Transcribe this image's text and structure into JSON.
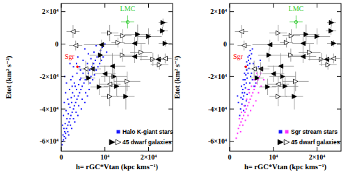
{
  "chart_data": [
    {
      "type": "scatter",
      "x_label": "h= rGC*Vtan (kpc kms⁻¹)",
      "y_label": "Etot (km² s⁻²)",
      "xlim": [
        0,
        25500
      ],
      "ylim": [
        -66000,
        25000
      ],
      "xticks": [
        0,
        {
          "value": 10000,
          "label": "10⁴"
        },
        {
          "value": 20000,
          "label": "2×10⁴"
        }
      ],
      "yticks": [
        {
          "value": -60000,
          "label": "-6×10⁴"
        },
        {
          "value": -40000,
          "label": "-4×10⁴"
        },
        {
          "value": -20000,
          "label": "-2×10⁴"
        },
        0,
        {
          "value": 20000,
          "label": "2×10⁴"
        }
      ],
      "legend": "lower right",
      "series": [
        {
          "name": "Halo K-giant stars",
          "color": "#1a1aff",
          "marker": "square",
          "x": [
            200,
            300,
            500,
            400,
            700,
            800,
            1000,
            1200,
            600,
            1500,
            900,
            1800,
            1300,
            2000,
            2200,
            1600,
            2500,
            2800,
            1100,
            2000,
            3000,
            3300,
            2400,
            3600,
            1500,
            3000,
            3900,
            4200,
            2600,
            4500,
            3500,
            1900,
            4800,
            4000,
            5200,
            3000,
            5500,
            4500,
            2200,
            5800,
            6200,
            5000,
            3600,
            6500,
            5600,
            7000,
            4200,
            6000,
            7400,
            7800,
            6800,
            5000,
            8200,
            8600,
            7500,
            9000,
            6200,
            9400,
            8000,
            10000,
            5400,
            1000,
            700,
            500,
            300,
            1200,
            800,
            2800,
            3800,
            2000,
            6400,
            5600,
            4800,
            4000,
            3400,
            2800,
            2100,
            1500,
            7200,
            6600,
            8000,
            8800,
            9600,
            7600,
            1700,
            2300,
            3200,
            2600,
            4300,
            3800,
            4600,
            5400,
            6000,
            3100,
            2400,
            1700,
            1000,
            10400,
            9200,
            4400,
            6800,
            8400,
            3500,
            2500
          ],
          "values": [
            -62000,
            -60000,
            -59000,
            -56000,
            -57000,
            -54000,
            -55000,
            -52000,
            -52000,
            -50000,
            -49000,
            -48000,
            -46000,
            -46000,
            -44000,
            -43000,
            -42000,
            -40000,
            -41000,
            -39000,
            -38000,
            -36000,
            -36000,
            -34000,
            -34000,
            -32000,
            -32000,
            -30000,
            -30000,
            -28000,
            -28000,
            -28000,
            -26000,
            -25000,
            -24000,
            -24000,
            -22000,
            -21000,
            -22000,
            -20000,
            -18000,
            -18000,
            -18000,
            -16000,
            -15000,
            -14000,
            -14000,
            -12000,
            -12000,
            -10000,
            -9000,
            -10000,
            -8000,
            -6000,
            -5000,
            -4000,
            -6000,
            -2000,
            -1000,
            0,
            -3000,
            -30000,
            -36000,
            -44000,
            -50000,
            -24000,
            -20000,
            -14000,
            -8000,
            -12000,
            -28000,
            -30000,
            -34000,
            -38000,
            -42000,
            -46000,
            -50000,
            -54000,
            -22000,
            -24000,
            -16000,
            -12000,
            -8000,
            -19000,
            -37000,
            -33000,
            -26000,
            -20000,
            -22000,
            -44000,
            -40000,
            -36000,
            -32000,
            -48000,
            -52000,
            -56000,
            -58000,
            -5000,
            -10000,
            -16000,
            -20000,
            -14000,
            -12000,
            -26000
          ]
        },
        {
          "name": "45 dwarf galaxies",
          "color": "#000000",
          "marker": "filled-triangle-right",
          "x": [
            23300,
            23200,
            23800,
            20000,
            17500,
            9000,
            12100,
            6300,
            12700,
            14800,
            8700
          ],
          "values": [
            13200,
            8100,
            400,
            4700,
            6000,
            -6800,
            -20000,
            -20900,
            -26000,
            -32300,
            -26400
          ],
          "x_error": [
            1000,
            1200,
            1500,
            3000,
            3000,
            2500,
            3000,
            1500,
            3000,
            2000,
            2000
          ],
          "y_error": [
            2500,
            2500,
            2000,
            5000,
            6000,
            4000,
            5000,
            4000,
            6000,
            8000,
            5000
          ]
        },
        {
          "color": "#000000",
          "marker": "open-triangle-right",
          "x": [
            14100,
            13000,
            11100,
            14000,
            18300,
            21000,
            22500,
            15100,
            11100
          ],
          "values": [
            5100,
            900,
            6800,
            -6800,
            -5100,
            -9400,
            -12800,
            -23000,
            -32300
          ],
          "x_error": [
            2000,
            1500,
            2000,
            2500,
            2500,
            3000,
            2000,
            3000,
            2000
          ],
          "y_error": [
            4000,
            3000,
            5000,
            4000,
            5000,
            4000,
            3000,
            6000,
            6000
          ]
        },
        {
          "color": "#000000",
          "marker": "filled-triangle-left",
          "x": [
            16800,
            9200,
            16800,
            11700,
            7100,
            10000,
            22200
          ],
          "values": [
            400,
            -400,
            -7700,
            -13600,
            -15300,
            -18300,
            -9400
          ],
          "x_error": [
            2500,
            4000,
            3000,
            3000,
            2000,
            2500,
            2000
          ],
          "y_error": [
            4000,
            3000,
            4000,
            8000,
            4000,
            5000,
            3000
          ]
        },
        {
          "color": "#000000",
          "marker": "open-triangle-left",
          "x": [
            2700,
            3300,
            5600,
            11100,
            23800
          ],
          "values": [
            7700,
            -900,
            -15300,
            -24700,
            -8900
          ],
          "x_error": [
            1500,
            1500,
            2000,
            2500,
            1500
          ],
          "y_error": [
            4000,
            3000,
            5000,
            5000,
            3000
          ]
        },
        {
          "color": "#33cc33",
          "marker": "open-circle",
          "x": [
            15200
          ],
          "values": [
            13600
          ],
          "x_error": [
            1500
          ],
          "y_error": [
            4000
          ]
        },
        {
          "color": "#ff0000",
          "marker": "dot",
          "x": [
            3700
          ],
          "values": [
            -14000
          ]
        }
      ],
      "annotations": [
        {
          "text": "LMC",
          "x": 15200,
          "y": 20500,
          "color": "#33cc33"
        },
        {
          "text": "Sgr",
          "x": 800,
          "y": -9000,
          "color": "#ff0000"
        }
      ]
    },
    {
      "type": "scatter",
      "x_label": "h= rGC*Vtan (kpc kms⁻¹)",
      "y_label": "Etot (km² s⁻²)",
      "xlim": [
        0,
        25500
      ],
      "ylim": [
        -66000,
        25000
      ],
      "xticks": [
        0,
        {
          "value": 10000,
          "label": "10⁴"
        },
        {
          "value": 20000,
          "label": "2×10⁴"
        }
      ],
      "yticks": [
        {
          "value": -60000,
          "label": "-6×10⁴"
        },
        {
          "value": -40000,
          "label": "-4×10⁴"
        },
        {
          "value": -20000,
          "label": "-2×10⁴"
        },
        0,
        {
          "value": 20000,
          "label": "2×10⁴"
        }
      ],
      "legend": "lower right",
      "series": [
        {
          "name": "Sgr stream stars",
          "color": "#1a1aff",
          "marker": "square",
          "x": [
            2500,
            2800,
            3000,
            3200,
            3400,
            3000,
            3600,
            3300,
            3800,
            3500,
            4000,
            3700,
            4200,
            3900,
            4400,
            4100,
            4600,
            4300,
            4800,
            4500,
            5000,
            4700,
            5200,
            2600,
            2900,
            2700,
            3100,
            3400,
            3600,
            3900,
            4200,
            5400,
            5800,
            6200,
            6000,
            5600,
            5200,
            5000,
            4800,
            4600,
            4400,
            4000,
            3800,
            3500,
            3200,
            2300,
            6600,
            7000,
            2000,
            1800
          ],
          "values": [
            -40000,
            -37000,
            -34000,
            -32000,
            -30000,
            -28000,
            -27000,
            -25000,
            -24000,
            -22000,
            -21000,
            -19000,
            -18000,
            -16000,
            -15000,
            -13000,
            -12000,
            -10000,
            -9000,
            -7000,
            -6000,
            -4000,
            -3000,
            -33000,
            -30000,
            -26000,
            -22000,
            -18000,
            -14000,
            -11000,
            -8000,
            -12000,
            -16000,
            -20000,
            -24000,
            -26000,
            -22000,
            -18000,
            -20000,
            -24000,
            -28000,
            -31000,
            -35000,
            -38000,
            -41000,
            -44000,
            -14000,
            -10000,
            -36000,
            -32000
          ]
        },
        {
          "color": "#ff33ff",
          "marker": "square",
          "x": [
            1800,
            2000,
            2300,
            2600,
            2200,
            2900,
            3200,
            2700,
            3500,
            3800,
            3300,
            4100,
            4400,
            3900,
            4700,
            5000,
            4500,
            5300,
            5600,
            5000,
            5900,
            6200,
            5600,
            6500,
            6800,
            6200,
            7100,
            7400,
            3000,
            3600,
            4200,
            4800,
            5400,
            6000,
            6600,
            7200,
            7800,
            2500,
            1500,
            4200
          ],
          "values": [
            -55000,
            -52000,
            -50000,
            -48000,
            -46000,
            -46000,
            -44000,
            -42000,
            -42000,
            -40000,
            -38000,
            -38000,
            -36000,
            -34000,
            -34000,
            -32000,
            -30000,
            -30000,
            -28000,
            -26000,
            -26000,
            -24000,
            -22000,
            -22000,
            -20000,
            -18000,
            -18000,
            -16000,
            -50000,
            -47000,
            -44000,
            -41000,
            -38000,
            -35000,
            -30000,
            -26000,
            -22000,
            -54000,
            -58000,
            -28000
          ]
        },
        {
          "name": "45 dwarf galaxies",
          "color": "#000000",
          "marker": "filled-triangle-right",
          "x": [
            23300,
            23200,
            23800,
            20000,
            17500,
            9000,
            12100,
            6300,
            12700,
            14800,
            8700
          ],
          "values": [
            13200,
            8100,
            400,
            4700,
            6000,
            -6800,
            -20000,
            -20900,
            -26000,
            -32300,
            -26400
          ],
          "x_error": [
            1000,
            1200,
            1500,
            3000,
            3000,
            2500,
            3000,
            1500,
            3000,
            2000,
            2000
          ],
          "y_error": [
            2500,
            2500,
            2000,
            5000,
            6000,
            4000,
            5000,
            4000,
            6000,
            8000,
            5000
          ]
        },
        {
          "color": "#000000",
          "marker": "open-triangle-right",
          "x": [
            14100,
            13000,
            11100,
            14000,
            18300,
            21000,
            22500,
            15100,
            11100
          ],
          "values": [
            5100,
            900,
            6800,
            -6800,
            -5100,
            -9400,
            -12800,
            -23000,
            -32300
          ],
          "x_error": [
            2000,
            1500,
            2000,
            2500,
            2500,
            3000,
            2000,
            3000,
            2000
          ],
          "y_error": [
            4000,
            3000,
            5000,
            4000,
            5000,
            4000,
            3000,
            6000,
            6000
          ]
        },
        {
          "color": "#000000",
          "marker": "filled-triangle-left",
          "x": [
            16800,
            9200,
            16800,
            11700,
            7100,
            10000,
            22200
          ],
          "values": [
            400,
            -400,
            -7700,
            -13600,
            -15300,
            -18300,
            -9400
          ],
          "x_error": [
            2500,
            4000,
            3000,
            3000,
            2000,
            2500,
            2000
          ],
          "y_error": [
            4000,
            3000,
            4000,
            8000,
            4000,
            5000,
            3000
          ]
        },
        {
          "color": "#000000",
          "marker": "open-triangle-left",
          "x": [
            2700,
            3300,
            5600,
            11100,
            23800
          ],
          "values": [
            7700,
            -900,
            -15300,
            -24700,
            -8900
          ],
          "x_error": [
            1500,
            1500,
            2000,
            2500,
            1500
          ],
          "y_error": [
            4000,
            3000,
            5000,
            5000,
            3000
          ]
        },
        {
          "color": "#33cc33",
          "marker": "open-circle",
          "x": [
            15200
          ],
          "values": [
            13600
          ],
          "x_error": [
            1500
          ],
          "y_error": [
            4000
          ]
        },
        {
          "color": "#ff0000",
          "marker": "dot",
          "x": [
            3700
          ],
          "values": [
            -14000
          ]
        }
      ],
      "annotations": [
        {
          "text": "LMC",
          "x": 15200,
          "y": 20500,
          "color": "#33cc33"
        },
        {
          "text": "Sgr",
          "x": 800,
          "y": -9000,
          "color": "#ff0000"
        }
      ]
    }
  ]
}
